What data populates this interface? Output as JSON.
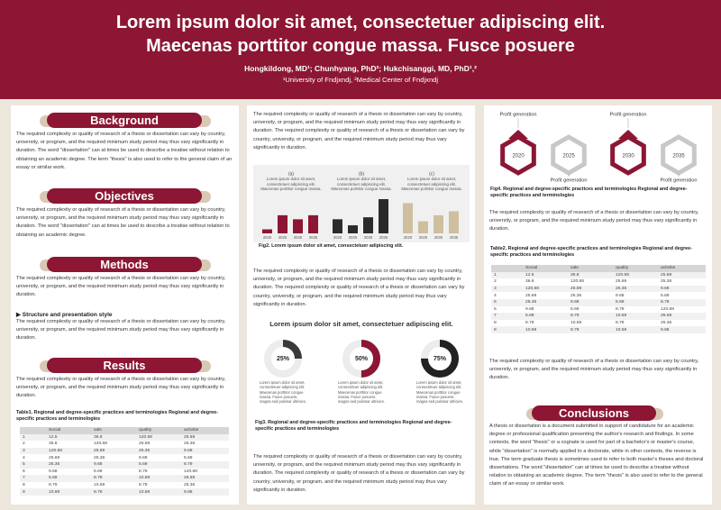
{
  "header": {
    "title_lines": [
      "Lorem ipsum dolor sit amet, consectetuer adipiscing elit.",
      "Maecenas porttitor congue massa. Fusce posuere"
    ],
    "authors": "Hongkildong, MD¹; Chunhyang, PhD²; Hukchisanggi, MD, PhD¹,²",
    "affiliations": "¹University of Fndjxndj, ²Medical Center of Fndjxndj"
  },
  "background": {
    "heading": "Background",
    "text": "The required complexity or quality of research of a thesis or dissertation can vary by country, university, or program, and the required minimum study period may thus vary significantly in duration. The word \"dissertation\" can at times be used to describe a treatise without relation to obtaining an academic degree. The term \"thesis\" is also used to refer to the general claim of an essay or similar work."
  },
  "objectives": {
    "heading": "Objectives",
    "text": "The required complexity or quality of research of a thesis or dissertation can vary by country, university, or program, and the required minimum study period may thus vary significantly in duration. The word \"dissertation\" can at times be used to describe a treatise without relation to obtaining an academic degree."
  },
  "methods": {
    "heading": "Methods",
    "text": "The required complexity or quality of research of a thesis or dissertation can vary by country, university, or program, and the required minimum study period may thus vary significantly in duration.",
    "subheading": "▶ Structure and presentation style",
    "subtext": "The required complexity or quality of research of a thesis or dissertation can vary by country, university, or program, and the required minimum study period may thus vary significantly in duration."
  },
  "results": {
    "heading": "Results",
    "text": "The required complexity or quality of research of a thesis or dissertation can vary by country, university, or program, and the required minimum study period may thus vary significantly in duration."
  },
  "table1": {
    "caption": "Table1. Regional and degree-specific practices and terminologies Regional and degree-specific practices and terminologies",
    "columns": [
      "Social",
      "sale",
      "quality",
      "activitie"
    ],
    "rows": [
      [
        1,
        12.5,
        36.8,
        120.68,
        25.69
      ],
      [
        2,
        36.8,
        120.68,
        25.69,
        25.36
      ],
      [
        3,
        120.68,
        25.69,
        25.36,
        9.68
      ],
      [
        4,
        25.69,
        25.36,
        9.68,
        5.69
      ],
      [
        5,
        25.36,
        9.68,
        5.69,
        8.79
      ],
      [
        6,
        9.68,
        5.69,
        8.79,
        120.68
      ],
      [
        7,
        5.69,
        8.79,
        10.69,
        25.69
      ],
      [
        8,
        8.79,
        10.69,
        8.79,
        25.36
      ],
      [
        9,
        10.69,
        8.79,
        10.69,
        9.68
      ]
    ]
  },
  "column2": {
    "intro": "The required complexity or quality of research of a thesis or dissertation can vary by country, university, or program, and the required minimum study period may thus vary significantly in duration. The required complexity or quality of research of a thesis or dissertation can vary by country, university, or program, and the required minimum study period may thus vary significantly in duration.",
    "fig2": {
      "charts": [
        {
          "label": "(a)",
          "text": "Lorem ipsum dolor sit amet, consectetuer adipiscing elit. Maecenas porttitor congue massa.",
          "categories": [
            "2020",
            "2025",
            "2030",
            "2035"
          ],
          "values": [
            10,
            45,
            35,
            45
          ],
          "color": "#8c1633"
        },
        {
          "label": "(b)",
          "text": "Lorem ipsum dolor sit amet, consectetuer adipiscing elit. Maecenas porttitor congue massa.",
          "categories": [
            "2020",
            "2025",
            "2030",
            "2035"
          ],
          "values": [
            35,
            20,
            40,
            85
          ],
          "color": "#2b2b2b"
        },
        {
          "label": "(c)",
          "text": "Lorem ipsum dolor sit amet, consectetuer adipiscing elit. Maecenas porttitor congue massa.",
          "categories": [
            "2020",
            "2025",
            "2030",
            "2035"
          ],
          "values": [
            75,
            30,
            45,
            55
          ],
          "color": "#cfbf9f"
        }
      ],
      "caption": "Fig2. Lorem ipsum dolor sit amet, consectetuer adipiscing elit."
    },
    "middle": "The required complexity or quality of research of a thesis or dissertation can vary by country, university, or program, and the required minimum study period may thus vary significantly in duration. The required complexity or quality of research of a thesis or dissertation can vary by country, university, or program, and the required minimum study period may thus vary significantly in duration.",
    "fig3": {
      "title": "Lorem ipsum dolor sit amet, consectetuer adipiscing elit.",
      "donuts": [
        {
          "value": 25,
          "value_label": "25%",
          "color": "#3a3a3a",
          "text": "Lorem ipsum dolor sit amet, consectetuer adipiscing elit. Maecenas porttitor congue massa. Fusce posuere, magna sed pulvinar ultricies."
        },
        {
          "value": 50,
          "value_label": "50%",
          "color": "#8c1633",
          "text": "Lorem ipsum dolor sit amet, consectetuer adipiscing elit. Maecenas porttitor congue massa. Fusce posuere, magna sed pulvinar ultricies."
        },
        {
          "value": 75,
          "value_label": "75%",
          "color": "#222222",
          "text": "Lorem ipsum dolor sit amet, consectetuer adipiscing elit. Maecenas porttitor congue massa. Fusce posuere, magna sed pulvinar ultricies."
        }
      ],
      "caption": "Fig3. Regional and degree-specific practices and terminologies Regional and degree-specific practices and terminologies"
    },
    "outro": "The required complexity or quality of research of a thesis or dissertation can vary by country, university, or program, and the required minimum study period may thus vary significantly in duration. The required complexity or quality of research of a thesis or dissertation can vary by country, university, or program, and the required minimum study period may thus vary significantly in duration."
  },
  "column3": {
    "fig4": {
      "steps": [
        {
          "year": "2020",
          "label": "Profit generation",
          "color": "#8c1633"
        },
        {
          "year": "2025",
          "label": "Profit generation",
          "color": "#c8c8c8"
        },
        {
          "year": "2030",
          "label": "Profit generation",
          "color": "#8c1633"
        },
        {
          "year": "2035",
          "label": "Profit generation",
          "color": "#c8c8c8"
        }
      ],
      "caption": "Fig4. Regional and degree-specific practices and terminologies Regional and degree-specific practices and terminologies"
    },
    "text1": "The required complexity or quality of research of a thesis or dissertation can vary by country, university, or program, and the required minimum study period may thus vary significantly in duration.",
    "table2": {
      "caption": "Table2. Regional and degree-specific practices and terminologies Regional and degree-specific practices and terminologies",
      "columns": [
        "Social",
        "sale",
        "quality",
        "activitie"
      ],
      "rows": [
        [
          1,
          12.5,
          36.8,
          120.68,
          25.69
        ],
        [
          2,
          36.8,
          120.68,
          25.69,
          25.36
        ],
        [
          3,
          120.68,
          25.69,
          25.36,
          9.68
        ],
        [
          4,
          25.69,
          25.36,
          9.68,
          5.69
        ],
        [
          5,
          25.36,
          9.68,
          5.69,
          8.79
        ],
        [
          6,
          9.68,
          5.69,
          8.79,
          120.68
        ],
        [
          7,
          5.69,
          8.79,
          10.69,
          25.69
        ],
        [
          8,
          8.79,
          10.69,
          8.79,
          25.36
        ],
        [
          9,
          10.69,
          8.79,
          10.69,
          9.68
        ]
      ]
    },
    "text2": "The required complexity or quality of research of a thesis or dissertation can vary by country, university, or program, and the required minimum study period may thus vary significantly in duration.",
    "conclusions": {
      "heading": "Conclusions",
      "text": "A thesis or dissertation is a document submitted in support of candidature for an academic degree or professional qualification presenting the author's research and findings. In some contexts, the word \"thesis\" or a cognate is used for part of a bachelor's or master's course, while \"dissertation\" is normally applied to a doctorate, while in other contexts, the reverse is true. The term graduate thesis is sometimes used to refer to both master's theses and doctoral dissertations. The word \"dissertation\" can at times be used to describe a treatise without relation to obtaining an academic degree. The term \"thesis\" is also used to refer to the general claim of an essay or similar work."
    }
  }
}
